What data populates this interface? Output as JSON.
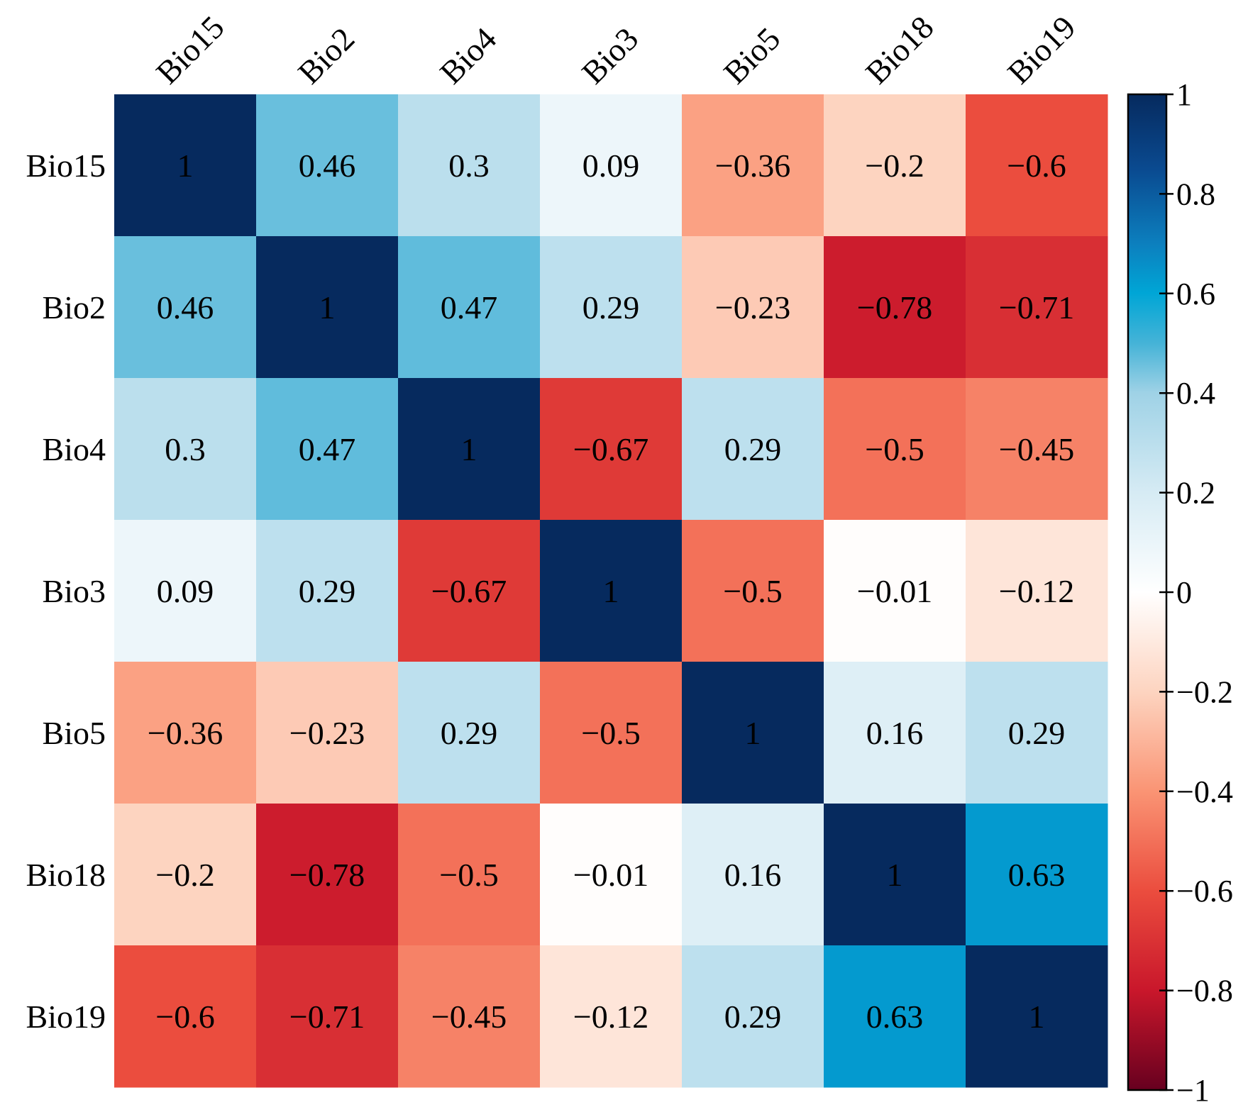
{
  "chart_data": {
    "type": "heatmap",
    "title": "",
    "row_labels": [
      "Bio15",
      "Bio2",
      "Bio4",
      "Bio3",
      "Bio5",
      "Bio18",
      "Bio19"
    ],
    "col_labels": [
      "Bio15",
      "Bio2",
      "Bio4",
      "Bio3",
      "Bio5",
      "Bio18",
      "Bio19"
    ],
    "values": [
      [
        1,
        0.46,
        0.3,
        0.09,
        -0.36,
        -0.2,
        -0.6
      ],
      [
        0.46,
        1,
        0.47,
        0.29,
        -0.23,
        -0.78,
        -0.71
      ],
      [
        0.3,
        0.47,
        1,
        -0.67,
        0.29,
        -0.5,
        -0.45
      ],
      [
        0.09,
        0.29,
        -0.67,
        1,
        -0.5,
        -0.01,
        -0.12
      ],
      [
        -0.36,
        -0.23,
        0.29,
        -0.5,
        1,
        0.16,
        0.29
      ],
      [
        -0.2,
        -0.78,
        -0.5,
        -0.01,
        0.16,
        1,
        0.63
      ],
      [
        -0.6,
        -0.71,
        -0.45,
        -0.12,
        0.29,
        0.63,
        1
      ]
    ],
    "cell_text": [
      [
        "1",
        "0.46",
        "0.3",
        "0.09",
        "−0.36",
        "−0.2",
        "−0.6"
      ],
      [
        "0.46",
        "1",
        "0.47",
        "0.29",
        "−0.23",
        "−0.78",
        "−0.71"
      ],
      [
        "0.3",
        "0.47",
        "1",
        "−0.67",
        "0.29",
        "−0.5",
        "−0.45"
      ],
      [
        "0.09",
        "0.29",
        "−0.67",
        "1",
        "−0.5",
        "−0.01",
        "−0.12"
      ],
      [
        "−0.36",
        "−0.23",
        "0.29",
        "−0.5",
        "1",
        "0.16",
        "0.29"
      ],
      [
        "−0.2",
        "−0.78",
        "−0.5",
        "−0.01",
        "0.16",
        "1",
        "0.63"
      ],
      [
        "−0.6",
        "−0.71",
        "−0.45",
        "−0.12",
        "0.29",
        "0.63",
        "1"
      ]
    ],
    "colorbar": {
      "range": [
        -1,
        1
      ],
      "ticks": [
        1,
        0.8,
        0.6,
        0.4,
        0.2,
        0,
        -0.2,
        -0.4,
        -0.6,
        -0.8,
        -1
      ],
      "tick_labels": [
        "1",
        "0.8",
        "0.6",
        "0.4",
        "0.2",
        "0",
        "−0.2",
        "−0.4",
        "−0.6",
        "−0.8",
        "−1"
      ],
      "colormap": "RdBu"
    },
    "color_stops": [
      {
        "v": -1,
        "c": "#67001f"
      },
      {
        "v": -0.8,
        "c": "#c9172b"
      },
      {
        "v": -0.6,
        "c": "#eb4d3e"
      },
      {
        "v": -0.4,
        "c": "#fa9474"
      },
      {
        "v": -0.2,
        "c": "#fdd4c0"
      },
      {
        "v": 0,
        "c": "#ffffff"
      },
      {
        "v": 0.2,
        "c": "#d6ebf4"
      },
      {
        "v": 0.4,
        "c": "#9fd2e6"
      },
      {
        "v": 0.5,
        "c": "#45b3d7"
      },
      {
        "v": 0.6,
        "c": "#00a6d6"
      },
      {
        "v": 0.7,
        "c": "#0c7fbe"
      },
      {
        "v": 0.85,
        "c": "#0a4a90"
      },
      {
        "v": 1,
        "c": "#062a5e"
      }
    ]
  }
}
